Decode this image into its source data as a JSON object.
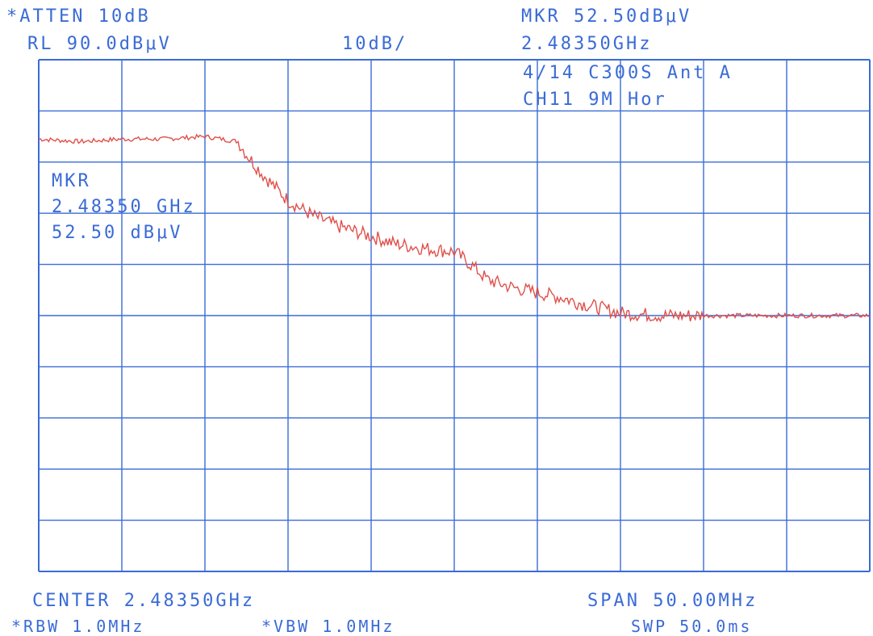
{
  "header": {
    "atten": "*ATTEN 10dB",
    "ref_level": "RL 90.0dBμV",
    "scale": "10dB/",
    "marker_amplitude": "MKR 52.50dBμV",
    "marker_frequency": "2.48350GHz"
  },
  "annotation": {
    "line1": "4/14 C300S Ant A",
    "line2": "CH11 9M Hor"
  },
  "marker_box": {
    "label": "MKR",
    "frequency": "2.48350 GHz",
    "amplitude": "52.50 dBμV"
  },
  "footer": {
    "center": "CENTER 2.48350GHz",
    "span": "SPAN 50.00MHz",
    "rbw": "*RBW 1.0MHz",
    "vbw": "*VBW 1.0MHz",
    "sweep": "SWP 50.0ms"
  },
  "colors": {
    "grid": "#3a6bd6",
    "trace": "#e0504a",
    "text": "#3a6bd6"
  },
  "chart_data": {
    "type": "line",
    "x_unit": "GHz",
    "y_unit": "dBμV",
    "xlim": [
      2.4585,
      2.5085
    ],
    "ylim": [
      -10,
      90
    ],
    "grid": true,
    "series": [
      {
        "x": [
          2.4585,
          2.461,
          2.4635,
          2.466,
          2.4685,
          2.4705,
          2.471,
          2.472,
          2.4735,
          2.475,
          2.4765,
          2.4785,
          2.48,
          2.482,
          2.4835,
          2.4845,
          2.4855,
          2.487,
          2.4885,
          2.49,
          2.491,
          2.4935,
          2.496,
          2.4985,
          2.501,
          2.5035,
          2.506,
          2.5085
        ],
        "y": [
          74.5,
          74.0,
          74.5,
          74.5,
          75.0,
          74.0,
          71.5,
          67.5,
          62.5,
          59.5,
          57.5,
          55.5,
          54.0,
          53.0,
          52.5,
          50.0,
          47.0,
          45.5,
          44.5,
          43.5,
          42.5,
          40.5,
          40.0,
          40.0,
          40.0,
          40.0,
          40.0,
          40.0
        ]
      }
    ]
  }
}
